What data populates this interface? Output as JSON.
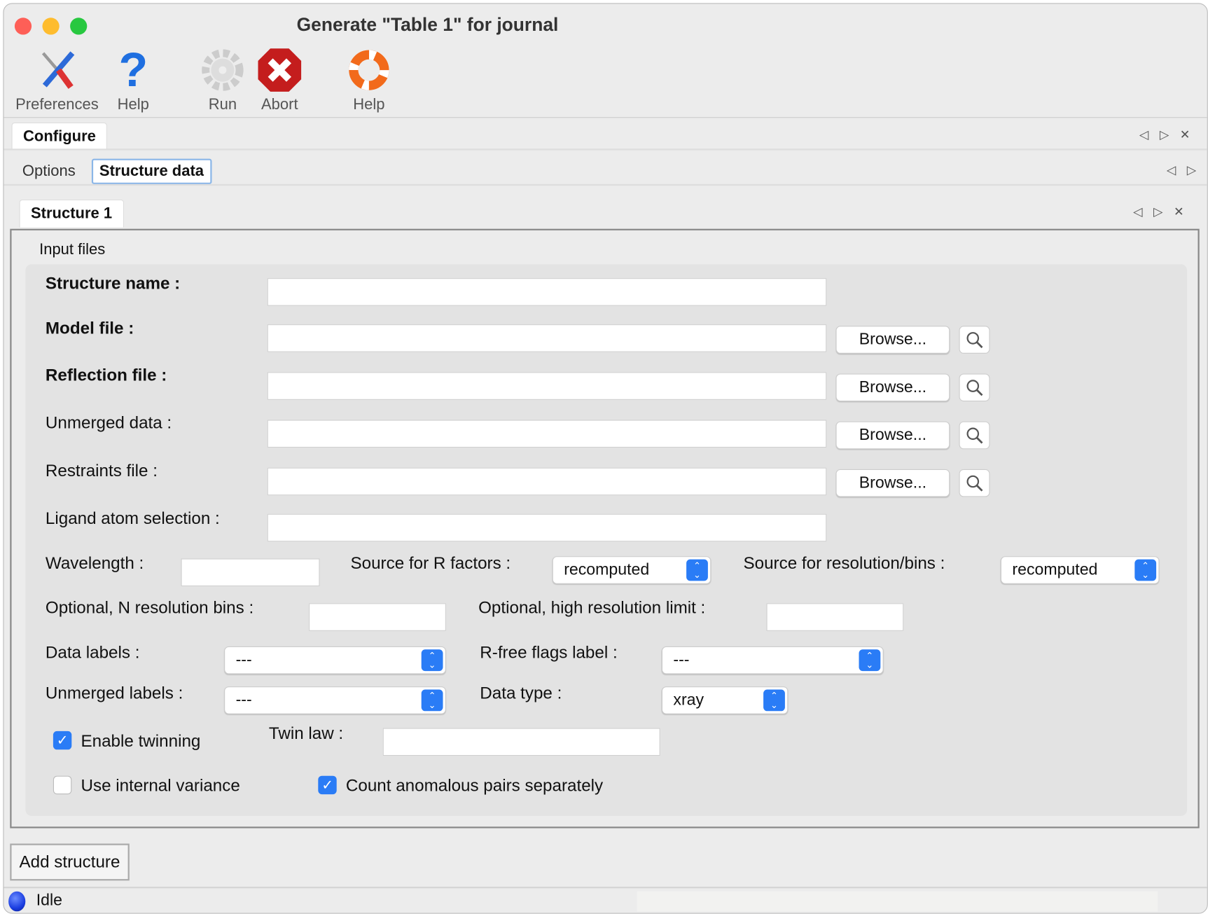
{
  "window": {
    "title": "Generate \"Table 1\" for journal"
  },
  "toolbar": {
    "preferences": "Preferences",
    "help1": "Help",
    "run": "Run",
    "abort": "Abort",
    "help2": "Help"
  },
  "tabs": {
    "configure": "Configure",
    "options": "Options",
    "structure_data": "Structure data",
    "structure1": "Structure 1"
  },
  "form": {
    "group_title": "Input files",
    "structure_name": "Structure name :",
    "model_file": "Model file :",
    "reflection_file": "Reflection file :",
    "unmerged_data": "Unmerged data :",
    "restraints_file": "Restraints file :",
    "ligand_selection": "Ligand atom selection :",
    "browse": "Browse...",
    "wavelength": "Wavelength :",
    "r_source": "Source for R factors :",
    "r_source_value": "recomputed",
    "res_source": "Source for resolution/bins :",
    "res_source_value": "recomputed",
    "n_bins": "Optional, N resolution bins :",
    "high_res": "Optional, high resolution limit :",
    "data_labels": "Data labels :",
    "data_labels_value": "---",
    "rfree_label": "R-free flags label :",
    "rfree_value": "---",
    "unmerged_labels": "Unmerged labels :",
    "unmerged_labels_value": "---",
    "data_type": "Data type :",
    "data_type_value": "xray",
    "enable_twinning": "Enable twinning",
    "enable_twinning_checked": true,
    "twin_law": "Twin law :",
    "internal_variance": "Use internal variance",
    "internal_variance_checked": false,
    "anomalous": "Count anomalous pairs separately",
    "anomalous_checked": true
  },
  "add_structure": "Add structure",
  "status": {
    "text": "Idle",
    "color": "#1a3de0"
  },
  "colors": {
    "accent": "#2a7cf6"
  }
}
